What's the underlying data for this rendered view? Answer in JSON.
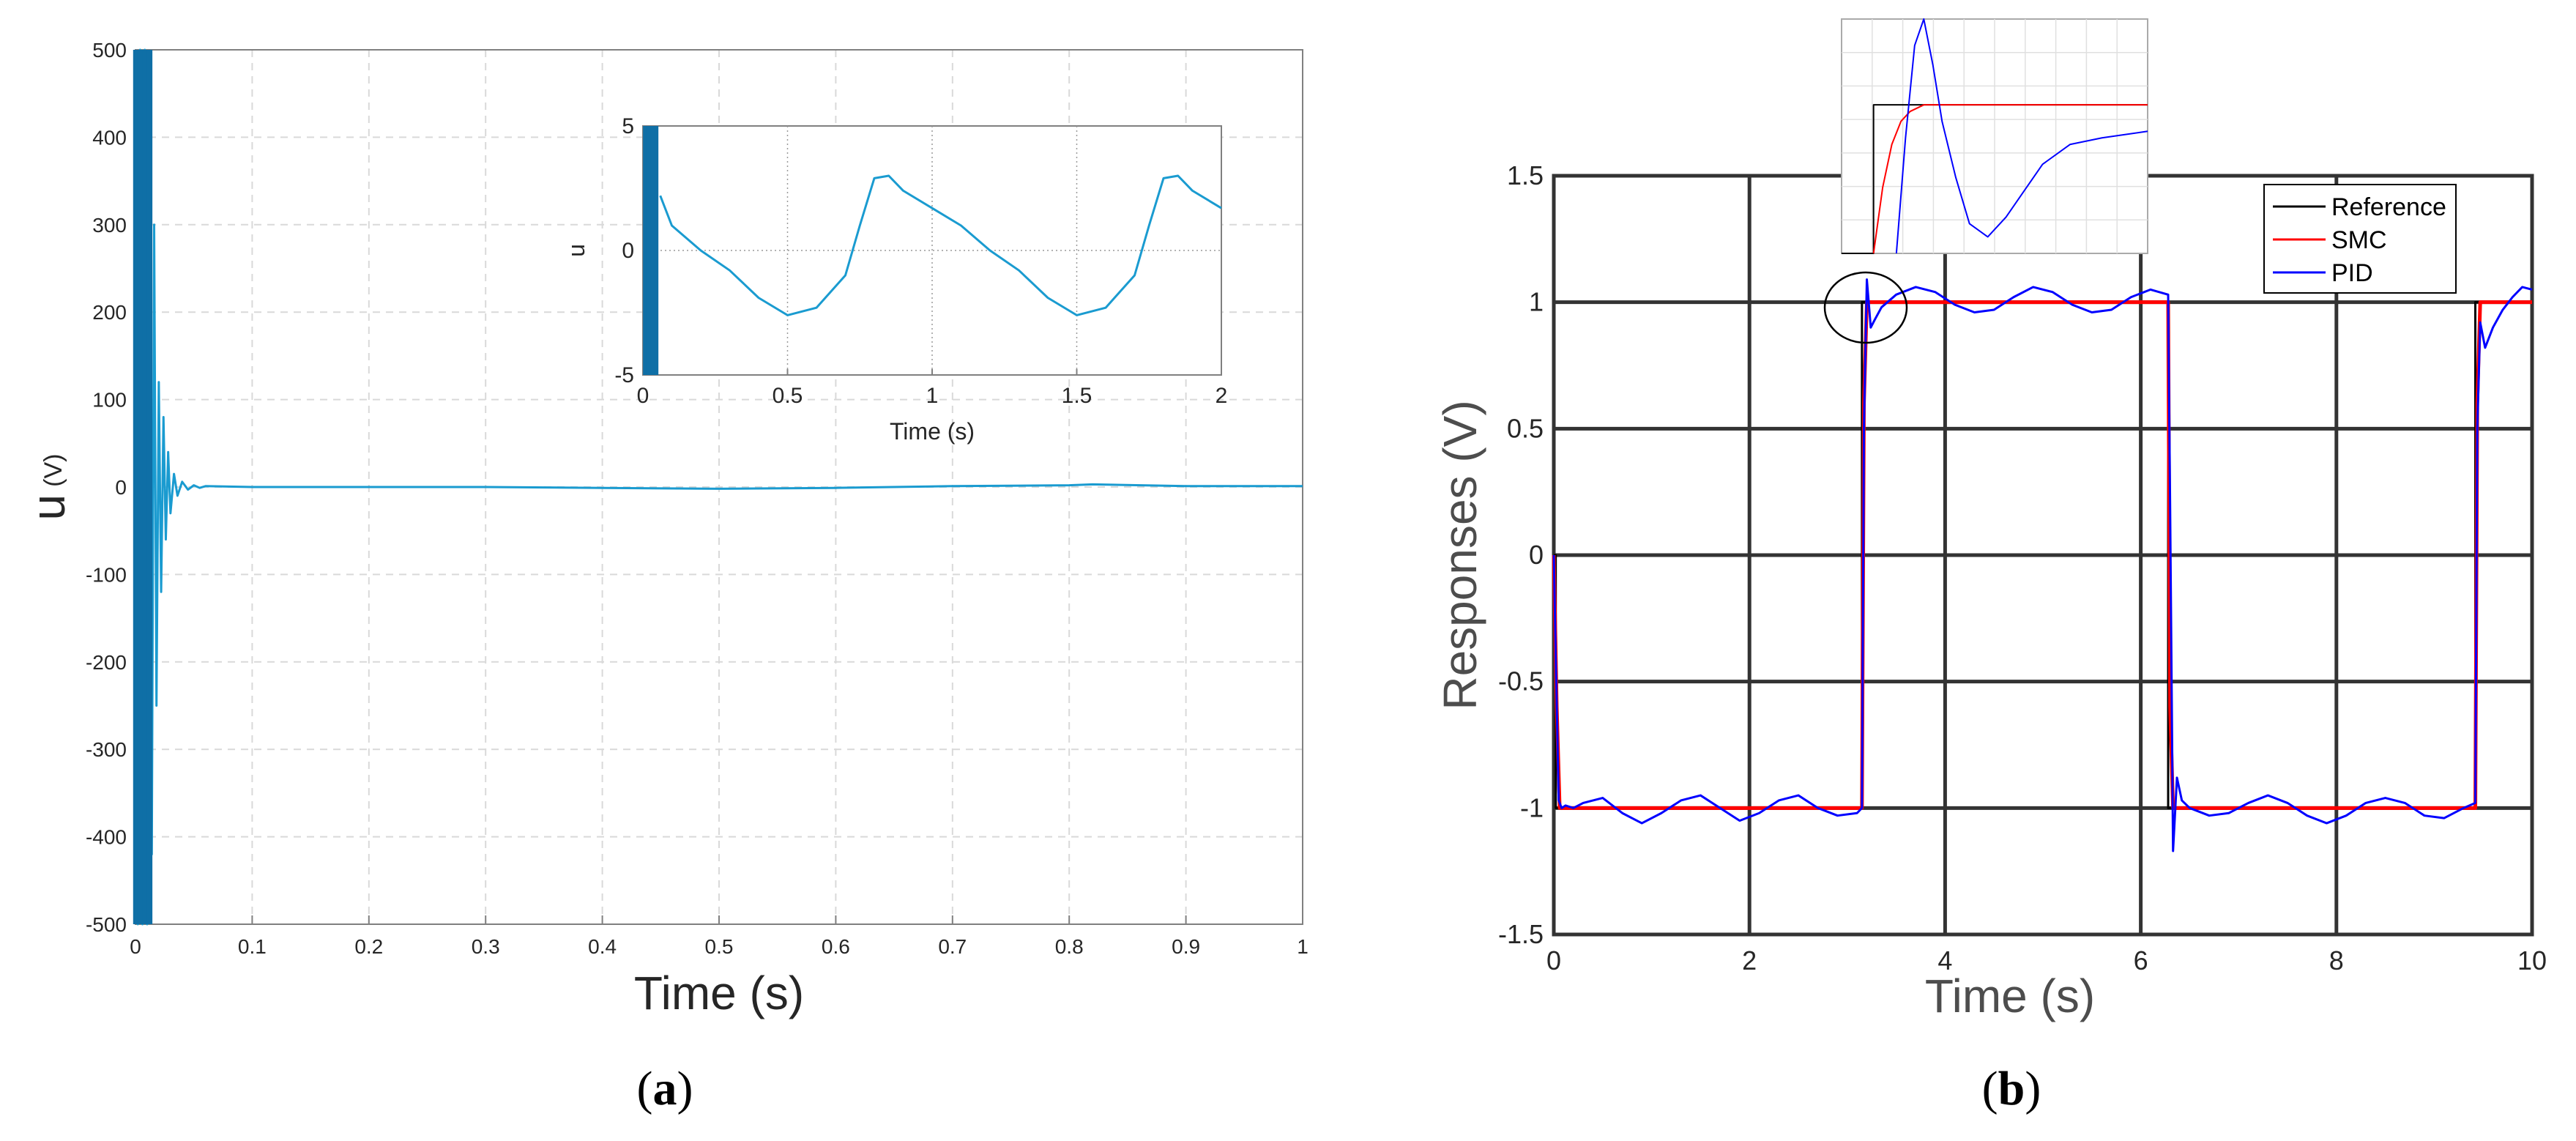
{
  "figure": {
    "panel_a_caption": {
      "open": "(",
      "letter": "a",
      "close": ")"
    },
    "panel_b_caption": {
      "open": "(",
      "letter": "b",
      "close": ")"
    }
  },
  "colors": {
    "a_line": "#1a9bd0",
    "a_line_dark": "#0f6fa6",
    "reference": "#000000",
    "smc": "#ff0000",
    "pid": "#0000ff",
    "grid_b": "#333333"
  },
  "chart_data": [
    {
      "id": "a_main",
      "type": "line",
      "title": "",
      "xlabel": "Time (s)",
      "ylabel": "u",
      "ylabel_unit": "(V)",
      "xlim": [
        0,
        1
      ],
      "ylim": [
        -500,
        500
      ],
      "xticks": [
        0,
        0.1,
        0.2,
        0.3,
        0.4,
        0.5,
        0.6,
        0.7,
        0.8,
        0.9,
        1
      ],
      "xtick_labels": [
        "0",
        "0.1",
        "0.2",
        "0.3",
        "0.4",
        "0.5",
        "0.6",
        "0.7",
        "0.8",
        "0.9",
        "1"
      ],
      "yticks": [
        -500,
        -400,
        -300,
        -200,
        -100,
        0,
        100,
        200,
        300,
        400,
        500
      ],
      "ytick_labels": [
        "-500",
        "-400",
        "-300",
        "-200",
        "-100",
        "0",
        "100",
        "200",
        "300",
        "400",
        "500"
      ],
      "grid": "dashed",
      "series": [
        {
          "name": "u",
          "x": [
            0,
            0.002,
            0.004,
            0.006,
            0.008,
            0.01,
            0.012,
            0.014,
            0.016,
            0.018,
            0.02,
            0.022,
            0.024,
            0.026,
            0.028,
            0.03,
            0.033,
            0.036,
            0.04,
            0.045,
            0.05,
            0.055,
            0.06,
            0.1,
            0.2,
            0.3,
            0.4,
            0.5,
            0.6,
            0.7,
            0.8,
            0.82,
            0.9,
            1.0
          ],
          "y": [
            500,
            -500,
            500,
            -500,
            500,
            -500,
            480,
            -420,
            300,
            -250,
            120,
            -120,
            80,
            -60,
            40,
            -30,
            15,
            -10,
            6,
            -3,
            2,
            -1,
            1,
            0,
            0,
            0,
            -1,
            -2,
            -1,
            1,
            2,
            3,
            1,
            1
          ]
        }
      ]
    },
    {
      "id": "a_inset",
      "type": "line",
      "xlabel": "Time (s)",
      "ylabel": "u",
      "xlim": [
        0,
        2
      ],
      "ylim": [
        -5,
        5
      ],
      "xticks": [
        0,
        0.5,
        1,
        1.5,
        2
      ],
      "xtick_labels": [
        "0",
        "0.5",
        "1",
        "1.5",
        "2"
      ],
      "yticks": [
        -5,
        0,
        5
      ],
      "ytick_labels": [
        "-5",
        "0",
        "5"
      ],
      "grid": "dotted",
      "series": [
        {
          "name": "u",
          "x": [
            0.06,
            0.1,
            0.2,
            0.3,
            0.4,
            0.5,
            0.6,
            0.7,
            0.75,
            0.8,
            0.85,
            0.9,
            1.0,
            1.1,
            1.2,
            1.3,
            1.4,
            1.5,
            1.6,
            1.7,
            1.75,
            1.8,
            1.85,
            1.9,
            2.0
          ],
          "y": [
            2.2,
            1.0,
            0.0,
            -0.8,
            -1.9,
            -2.6,
            -2.3,
            -1.0,
            1.0,
            2.9,
            3.0,
            2.4,
            1.7,
            1.0,
            0.0,
            -0.8,
            -1.9,
            -2.6,
            -2.3,
            -1.0,
            1.0,
            2.9,
            3.0,
            2.4,
            1.7
          ]
        }
      ]
    },
    {
      "id": "b_main",
      "type": "line",
      "xlabel": "Time (s)",
      "ylabel": "Responses (V)",
      "xlim": [
        0,
        10
      ],
      "ylim": [
        -1.5,
        1.5
      ],
      "xticks": [
        0,
        2,
        4,
        6,
        8,
        10
      ],
      "xtick_labels": [
        "0",
        "2",
        "4",
        "6",
        "8",
        "10"
      ],
      "yticks": [
        -1.5,
        -1,
        -0.5,
        0,
        0.5,
        1,
        1.5
      ],
      "ytick_labels": [
        "-1.5",
        "-1",
        "-0.5",
        "0",
        "0.5",
        "1",
        "1.5"
      ],
      "grid": "solid",
      "legend": "top-right",
      "series": [
        {
          "name": "Reference",
          "color": "#000000",
          "x": [
            0,
            0.02,
            0.02,
            3.15,
            3.15,
            6.28,
            6.28,
            9.42,
            9.42,
            10
          ],
          "y": [
            0,
            0,
            -1,
            -1,
            1,
            1,
            -1,
            -1,
            1,
            1
          ]
        },
        {
          "name": "SMC",
          "color": "#ff0000",
          "x": [
            0,
            0.03,
            0.06,
            3.15,
            3.17,
            3.2,
            6.28,
            6.3,
            6.33,
            9.42,
            9.44,
            9.47,
            10
          ],
          "y": [
            0,
            -0.6,
            -1,
            -1,
            0.6,
            1,
            1,
            -0.6,
            -1,
            -1,
            0.6,
            1,
            1
          ]
        },
        {
          "name": "PID",
          "color": "#0000ff",
          "x": [
            0,
            0.02,
            0.05,
            0.08,
            0.12,
            0.2,
            0.3,
            0.5,
            0.7,
            0.9,
            1.1,
            1.3,
            1.5,
            1.7,
            1.9,
            2.1,
            2.3,
            2.5,
            2.7,
            2.9,
            3.1,
            3.15,
            3.17,
            3.2,
            3.24,
            3.28,
            3.35,
            3.5,
            3.7,
            3.9,
            4.1,
            4.3,
            4.5,
            4.7,
            4.9,
            5.1,
            5.3,
            5.5,
            5.7,
            5.9,
            6.1,
            6.28,
            6.3,
            6.33,
            6.37,
            6.42,
            6.5,
            6.7,
            6.9,
            7.1,
            7.3,
            7.5,
            7.7,
            7.9,
            8.1,
            8.3,
            8.5,
            8.7,
            8.9,
            9.1,
            9.3,
            9.42,
            9.44,
            9.47,
            9.52,
            9.6,
            9.7,
            9.8,
            9.9,
            10
          ],
          "y": [
            0,
            -0.4,
            -0.97,
            -1.0,
            -0.99,
            -1.0,
            -0.98,
            -0.96,
            -1.02,
            -1.06,
            -1.02,
            -0.97,
            -0.95,
            -1.0,
            -1.05,
            -1.02,
            -0.97,
            -0.95,
            -1.0,
            -1.03,
            -1.02,
            -1.0,
            0.5,
            1.09,
            0.9,
            0.93,
            0.98,
            1.03,
            1.06,
            1.04,
            0.99,
            0.96,
            0.97,
            1.02,
            1.06,
            1.04,
            0.99,
            0.96,
            0.97,
            1.02,
            1.05,
            1.03,
            0.2,
            -1.17,
            -0.88,
            -0.97,
            -1.0,
            -1.03,
            -1.02,
            -0.98,
            -0.95,
            -0.98,
            -1.03,
            -1.06,
            -1.03,
            -0.98,
            -0.96,
            -0.98,
            -1.03,
            -1.04,
            -1.0,
            -0.98,
            0.5,
            0.92,
            0.82,
            0.9,
            0.97,
            1.02,
            1.06,
            1.05
          ]
        }
      ]
    },
    {
      "id": "b_inset",
      "type": "line",
      "xlim": [
        3.08,
        3.75
      ],
      "ylim": [
        0.55,
        1.26
      ],
      "grid": "solid",
      "series": [
        {
          "name": "Reference",
          "color": "#000000",
          "x": [
            3.08,
            3.15,
            3.15,
            3.75
          ],
          "y": [
            0.55,
            0.55,
            1.0,
            1.0
          ]
        },
        {
          "name": "SMC",
          "color": "#ff0000",
          "x": [
            3.15,
            3.17,
            3.19,
            3.21,
            3.23,
            3.26,
            3.3,
            3.75
          ],
          "y": [
            0.55,
            0.75,
            0.88,
            0.95,
            0.98,
            1.0,
            1.0,
            1.0
          ]
        },
        {
          "name": "PID",
          "color": "#0000ff",
          "x": [
            3.2,
            3.22,
            3.24,
            3.26,
            3.28,
            3.3,
            3.33,
            3.36,
            3.4,
            3.44,
            3.48,
            3.52,
            3.58,
            3.65,
            3.75
          ],
          "y": [
            0.55,
            0.9,
            1.18,
            1.26,
            1.12,
            0.95,
            0.78,
            0.64,
            0.6,
            0.66,
            0.74,
            0.82,
            0.88,
            0.9,
            0.92
          ]
        }
      ]
    }
  ]
}
